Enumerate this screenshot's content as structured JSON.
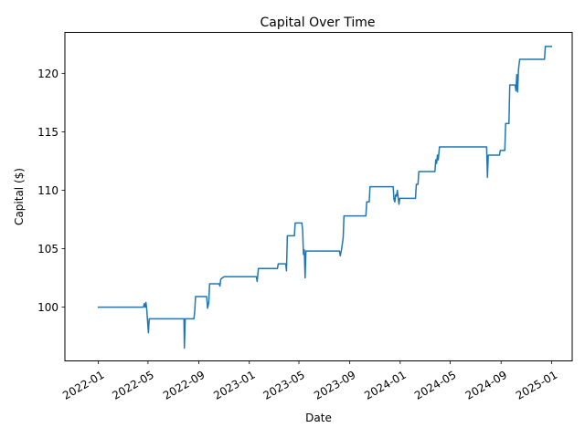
{
  "chart_data": {
    "type": "line",
    "title": "Capital Over Time",
    "xlabel": "Date",
    "ylabel": "Capital ($)",
    "x_tick_labels": [
      "2022-01",
      "2022-05",
      "2022-09",
      "2023-01",
      "2023-05",
      "2023-09",
      "2024-01",
      "2024-05",
      "2024-09",
      "2025-01"
    ],
    "y_tick_labels": [
      "100",
      "105",
      "110",
      "115",
      "120"
    ],
    "y_ticks": [
      100,
      105,
      110,
      115,
      120
    ],
    "xlim": [
      "2021-10-12",
      "2025-02-20"
    ],
    "ylim": [
      95.4,
      123.5
    ],
    "grid": false,
    "series": [
      {
        "color": "#1f77b4",
        "points": [
          [
            "2022-01-01",
            100.0
          ],
          [
            "2022-04-20",
            100.0
          ],
          [
            "2022-04-22",
            100.3
          ],
          [
            "2022-04-24",
            100.0
          ],
          [
            "2022-04-26",
            100.4
          ],
          [
            "2022-04-28",
            99.8
          ],
          [
            "2022-05-02",
            97.8
          ],
          [
            "2022-05-04",
            99.0
          ],
          [
            "2022-07-27",
            99.0
          ],
          [
            "2022-07-28",
            96.5
          ],
          [
            "2022-07-30",
            99.0
          ],
          [
            "2022-08-20",
            99.0
          ],
          [
            "2022-08-22",
            99.6
          ],
          [
            "2022-08-24",
            100.9
          ],
          [
            "2022-09-20",
            100.9
          ],
          [
            "2022-09-22",
            99.9
          ],
          [
            "2022-09-25",
            100.4
          ],
          [
            "2022-09-27",
            102.0
          ],
          [
            "2022-10-20",
            102.0
          ],
          [
            "2022-10-22",
            101.8
          ],
          [
            "2022-10-24",
            102.4
          ],
          [
            "2022-11-01",
            102.6
          ],
          [
            "2023-01-18",
            102.6
          ],
          [
            "2023-01-20",
            102.2
          ],
          [
            "2023-01-23",
            103.3
          ],
          [
            "2023-03-10",
            103.3
          ],
          [
            "2023-03-12",
            103.7
          ],
          [
            "2023-03-30",
            103.7
          ],
          [
            "2023-04-01",
            103.1
          ],
          [
            "2023-04-03",
            106.1
          ],
          [
            "2023-04-20",
            106.1
          ],
          [
            "2023-04-22",
            107.2
          ],
          [
            "2023-05-08",
            107.2
          ],
          [
            "2023-05-10",
            106.6
          ],
          [
            "2023-05-12",
            104.5
          ],
          [
            "2023-05-14",
            104.9
          ],
          [
            "2023-05-16",
            102.5
          ],
          [
            "2023-05-18",
            104.8
          ],
          [
            "2023-08-07",
            104.8
          ],
          [
            "2023-08-09",
            104.4
          ],
          [
            "2023-08-12",
            104.9
          ],
          [
            "2023-08-16",
            105.9
          ],
          [
            "2023-08-18",
            107.8
          ],
          [
            "2023-10-10",
            107.8
          ],
          [
            "2023-10-12",
            109.0
          ],
          [
            "2023-10-18",
            109.0
          ],
          [
            "2023-10-20",
            110.3
          ],
          [
            "2023-12-15",
            110.3
          ],
          [
            "2023-12-17",
            109.2
          ],
          [
            "2023-12-19",
            109.0
          ],
          [
            "2023-12-21",
            109.6
          ],
          [
            "2023-12-23",
            109.5
          ],
          [
            "2023-12-25",
            110.0
          ],
          [
            "2023-12-27",
            109.4
          ],
          [
            "2023-12-29",
            108.8
          ],
          [
            "2023-12-31",
            109.3
          ],
          [
            "2024-02-07",
            109.3
          ],
          [
            "2024-02-09",
            110.5
          ],
          [
            "2024-02-13",
            110.5
          ],
          [
            "2024-02-15",
            111.6
          ],
          [
            "2024-03-25",
            111.6
          ],
          [
            "2024-03-27",
            112.6
          ],
          [
            "2024-03-29",
            112.3
          ],
          [
            "2024-03-31",
            113.0
          ],
          [
            "2024-04-02",
            112.6
          ],
          [
            "2024-04-05",
            113.7
          ],
          [
            "2024-07-28",
            113.7
          ],
          [
            "2024-07-30",
            111.1
          ],
          [
            "2024-08-01",
            113.0
          ],
          [
            "2024-08-28",
            113.0
          ],
          [
            "2024-08-30",
            113.4
          ],
          [
            "2024-09-10",
            113.4
          ],
          [
            "2024-09-12",
            115.7
          ],
          [
            "2024-09-20",
            115.7
          ],
          [
            "2024-09-22",
            119.0
          ],
          [
            "2024-10-05",
            119.0
          ],
          [
            "2024-10-07",
            118.5
          ],
          [
            "2024-10-09",
            119.9
          ],
          [
            "2024-10-11",
            118.4
          ],
          [
            "2024-10-13",
            120.3
          ],
          [
            "2024-10-16",
            121.2
          ],
          [
            "2024-12-15",
            121.2
          ],
          [
            "2024-12-17",
            122.3
          ],
          [
            "2025-01-01",
            122.3
          ]
        ]
      }
    ]
  }
}
